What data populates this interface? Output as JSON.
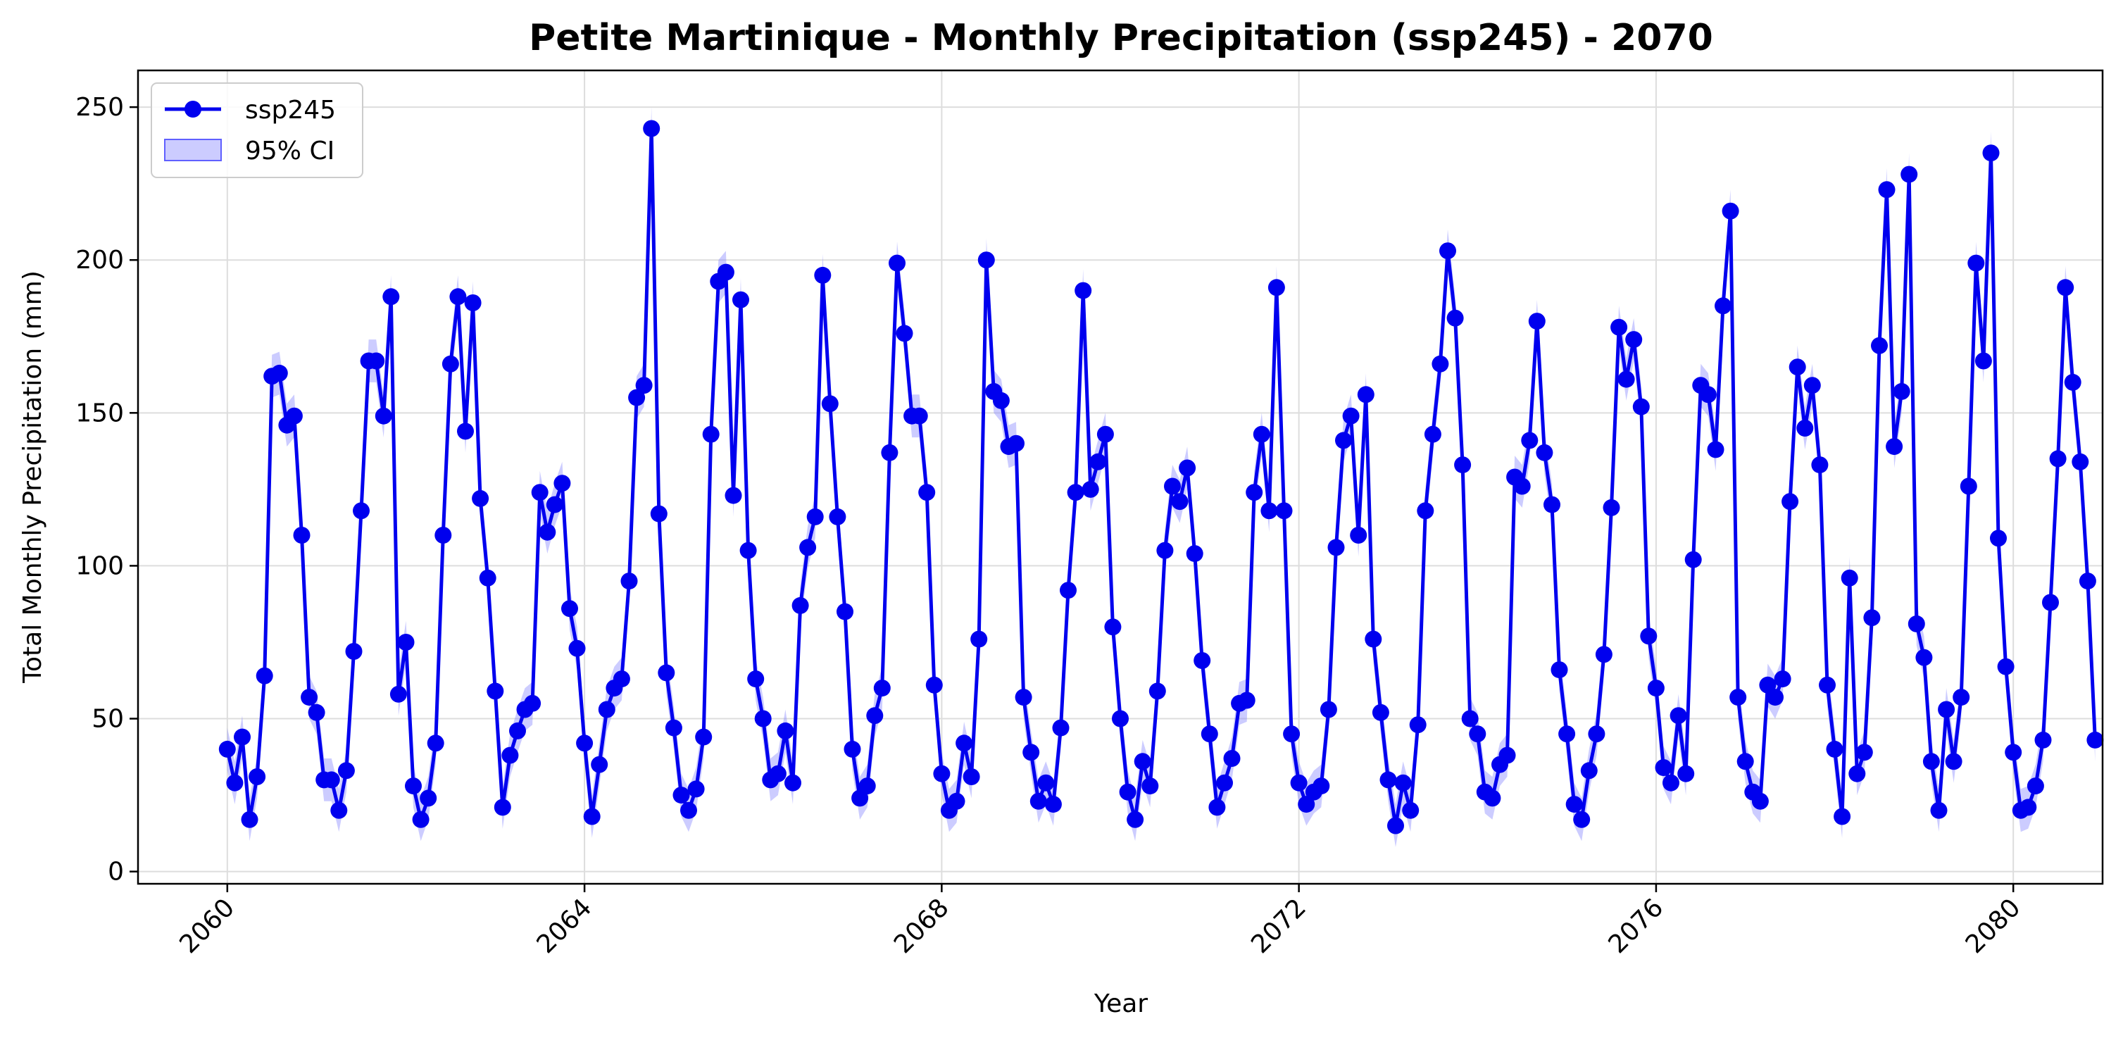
{
  "chart_data": {
    "type": "line",
    "title": "Petite Martinique - Monthly Precipitation (ssp245) - 2070",
    "xlabel": "Year",
    "ylabel": "Total Monthly Precipitation (mm)",
    "xlim": [
      2059.0,
      2081.0
    ],
    "ylim": [
      -4,
      262
    ],
    "x_ticks": [
      2060,
      2064,
      2068,
      2072,
      2076,
      2080
    ],
    "y_ticks": [
      0,
      50,
      100,
      150,
      200,
      250
    ],
    "grid": true,
    "legend_position": "top-left",
    "legend": [
      {
        "label": "ssp245",
        "kind": "line-marker"
      },
      {
        "label": "95% CI",
        "kind": "band"
      }
    ],
    "x_start": "2060-01",
    "step": "monthly",
    "series": [
      {
        "name": "ssp245",
        "color": "#0000ee",
        "band_color": "#8080ff",
        "ci_half_width": 7,
        "values": [
          40,
          29,
          44,
          17,
          31,
          64,
          162,
          163,
          146,
          149,
          110,
          57,
          52,
          30,
          30,
          20,
          33,
          72,
          118,
          167,
          167,
          149,
          188,
          58,
          75,
          28,
          17,
          24,
          42,
          110,
          166,
          188,
          144,
          186,
          122,
          96,
          59,
          21,
          38,
          46,
          53,
          55,
          124,
          111,
          120,
          127,
          86,
          73,
          42,
          18,
          35,
          53,
          60,
          63,
          95,
          155,
          159,
          243,
          117,
          65,
          47,
          25,
          20,
          27,
          44,
          143,
          193,
          196,
          123,
          187,
          105,
          63,
          50,
          30,
          32,
          46,
          29,
          87,
          106,
          116,
          195,
          153,
          116,
          85,
          40,
          24,
          28,
          51,
          60,
          137,
          199,
          176,
          149,
          149,
          124,
          61,
          32,
          20,
          23,
          42,
          31,
          76,
          200,
          157,
          154,
          139,
          140,
          57,
          39,
          23,
          29,
          22,
          47,
          92,
          124,
          190,
          125,
          134,
          143,
          80,
          50,
          26,
          17,
          36,
          28,
          59,
          105,
          126,
          121,
          132,
          104,
          69,
          45,
          21,
          29,
          37,
          55,
          56,
          124,
          143,
          118,
          191,
          118,
          45,
          29,
          22,
          26,
          28,
          53,
          106,
          141,
          149,
          110,
          156,
          76,
          52,
          30,
          15,
          29,
          20,
          48,
          118,
          143,
          166,
          203,
          181,
          133,
          50,
          45,
          26,
          24,
          35,
          38,
          129,
          126,
          141,
          180,
          137,
          120,
          66,
          45,
          22,
          17,
          33,
          45,
          71,
          119,
          178,
          161,
          174,
          152,
          77,
          60,
          34,
          29,
          51,
          32,
          102,
          159,
          156,
          138,
          185,
          216,
          57,
          36,
          26,
          23,
          61,
          57,
          63,
          121,
          165,
          145,
          159,
          133,
          61,
          40,
          18,
          96,
          32,
          39,
          83,
          172,
          223,
          139,
          157,
          228,
          81,
          70,
          36,
          20,
          53,
          36,
          57,
          126,
          199,
          167,
          235,
          109,
          67,
          39,
          20,
          21,
          28,
          43,
          88,
          135,
          191,
          160,
          134,
          95,
          43
        ]
      }
    ]
  }
}
